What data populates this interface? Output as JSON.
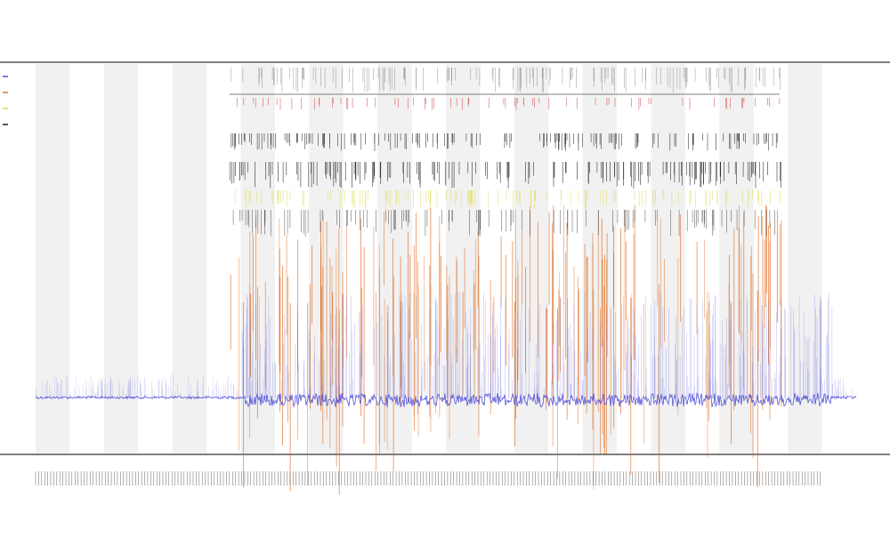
{
  "chart_data": {
    "type": "line",
    "title": "",
    "subtitle": "",
    "xlabel": "",
    "ylabel": "",
    "grid": false,
    "band_count": 24,
    "x_tick_count": 260,
    "ylim": [
      0,
      1
    ],
    "legend_position": "left",
    "series": [
      {
        "color": "#3a3ad6",
        "role": "baseline"
      },
      {
        "color": "#e06a1b",
        "role": "spikes"
      },
      {
        "color": "#d8d83a",
        "role": "markers"
      },
      {
        "color": "#111111",
        "role": "events"
      },
      {
        "color": "#cc2222",
        "role": "events"
      }
    ]
  }
}
